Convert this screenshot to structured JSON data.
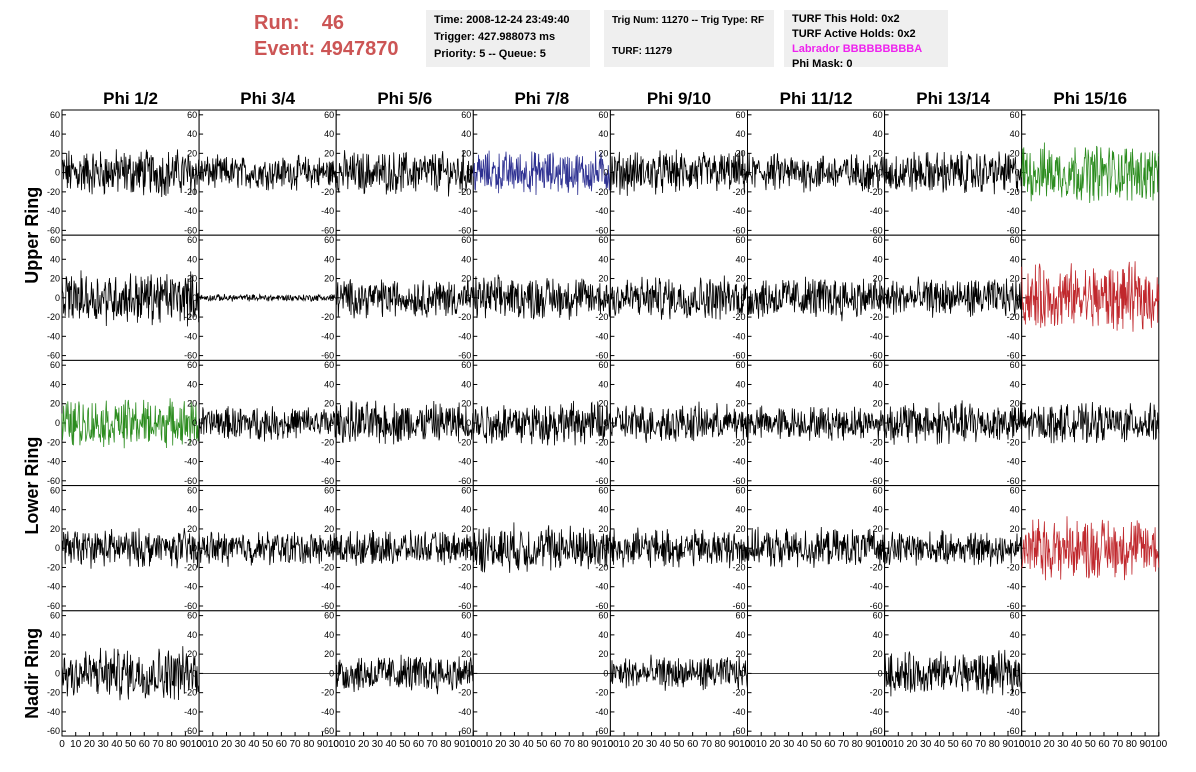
{
  "header": {
    "run_label": "Run:",
    "run_value": "46",
    "event_label": "Event:",
    "event_value": "4947870"
  },
  "info_time": {
    "time": "Time: 2008-12-24 23:49:40",
    "trigger": "Trigger: 427.988073 ms",
    "priority": "Priority: 5 -- Queue: 5"
  },
  "info_trig": {
    "trig": "Trig Num: 11270 -- Trig Type: RF",
    "turf": "TURF: 11279"
  },
  "info_turf": {
    "hold": "TURF This Hold: 0x2",
    "active": "TURF Active Holds: 0x2",
    "labrador": "Labrador BBBBBBBBBA",
    "mask": "Phi Mask: 0"
  },
  "colors": {
    "default": "#000000",
    "blue": "#2e3192",
    "green": "#2b8c1e",
    "red": "#c0282d",
    "header_red": "#cc5555",
    "magenta": "#ee22ee"
  },
  "chart_data": {
    "type": "line",
    "columns": [
      "Phi 1/2",
      "Phi 3/4",
      "Phi 5/6",
      "Phi 7/8",
      "Phi 9/10",
      "Phi 11/12",
      "Phi 13/14",
      "Phi 15/16"
    ],
    "rows": [
      "Upper Ring",
      "Lower Ring",
      "Nadir Ring"
    ],
    "y_ticks": [
      "60",
      "40",
      "20",
      "0",
      "-20",
      "-40",
      "-60"
    ],
    "x_ticks": [
      "0",
      "10",
      "20",
      "30",
      "40",
      "50",
      "60",
      "70",
      "80",
      "90",
      "100"
    ],
    "xlim": [
      0,
      100
    ],
    "ylim": [
      -65,
      65
    ],
    "panels": [
      {
        "row": 0,
        "col": 0,
        "color": "default",
        "amplitude": 20
      },
      {
        "row": 0,
        "col": 1,
        "color": "default",
        "amplitude": 14
      },
      {
        "row": 0,
        "col": 2,
        "color": "default",
        "amplitude": 18
      },
      {
        "row": 0,
        "col": 3,
        "color": "blue",
        "amplitude": 18
      },
      {
        "row": 0,
        "col": 4,
        "color": "default",
        "amplitude": 18
      },
      {
        "row": 0,
        "col": 5,
        "color": "default",
        "amplitude": 16
      },
      {
        "row": 0,
        "col": 6,
        "color": "default",
        "amplitude": 18
      },
      {
        "row": 0,
        "col": 7,
        "color": "green",
        "amplitude": 24
      },
      {
        "row": 1,
        "col": 0,
        "color": "default",
        "amplitude": 22
      },
      {
        "row": 1,
        "col": 1,
        "color": "default",
        "amplitude": 3
      },
      {
        "row": 1,
        "col": 2,
        "color": "default",
        "amplitude": 16
      },
      {
        "row": 1,
        "col": 3,
        "color": "default",
        "amplitude": 18
      },
      {
        "row": 1,
        "col": 4,
        "color": "default",
        "amplitude": 18
      },
      {
        "row": 1,
        "col": 5,
        "color": "default",
        "amplitude": 18
      },
      {
        "row": 1,
        "col": 6,
        "color": "default",
        "amplitude": 16
      },
      {
        "row": 1,
        "col": 7,
        "color": "red",
        "amplitude": 28
      },
      {
        "row": 2,
        "col": 0,
        "color": "green",
        "amplitude": 20
      },
      {
        "row": 2,
        "col": 1,
        "color": "default",
        "amplitude": 14
      },
      {
        "row": 2,
        "col": 2,
        "color": "default",
        "amplitude": 18
      },
      {
        "row": 2,
        "col": 3,
        "color": "default",
        "amplitude": 18
      },
      {
        "row": 2,
        "col": 4,
        "color": "default",
        "amplitude": 16
      },
      {
        "row": 2,
        "col": 5,
        "color": "default",
        "amplitude": 14
      },
      {
        "row": 2,
        "col": 6,
        "color": "default",
        "amplitude": 18
      },
      {
        "row": 2,
        "col": 7,
        "color": "default",
        "amplitude": 16
      },
      {
        "row": 3,
        "col": 0,
        "color": "default",
        "amplitude": 16
      },
      {
        "row": 3,
        "col": 1,
        "color": "default",
        "amplitude": 14
      },
      {
        "row": 3,
        "col": 2,
        "color": "default",
        "amplitude": 14
      },
      {
        "row": 3,
        "col": 3,
        "color": "default",
        "amplitude": 20
      },
      {
        "row": 3,
        "col": 4,
        "color": "default",
        "amplitude": 16
      },
      {
        "row": 3,
        "col": 5,
        "color": "default",
        "amplitude": 16
      },
      {
        "row": 3,
        "col": 6,
        "color": "default",
        "amplitude": 14
      },
      {
        "row": 3,
        "col": 7,
        "color": "red",
        "amplitude": 26
      },
      {
        "row": 4,
        "col": 0,
        "color": "default",
        "amplitude": 22
      },
      {
        "row": 4,
        "col": 1,
        "color": "default",
        "amplitude": 0
      },
      {
        "row": 4,
        "col": 2,
        "color": "default",
        "amplitude": 16
      },
      {
        "row": 4,
        "col": 3,
        "color": "default",
        "amplitude": 0
      },
      {
        "row": 4,
        "col": 4,
        "color": "default",
        "amplitude": 14
      },
      {
        "row": 4,
        "col": 5,
        "color": "default",
        "amplitude": 0
      },
      {
        "row": 4,
        "col": 6,
        "color": "default",
        "amplitude": 18
      },
      {
        "row": 4,
        "col": 7,
        "color": "default",
        "amplitude": 0
      }
    ]
  }
}
